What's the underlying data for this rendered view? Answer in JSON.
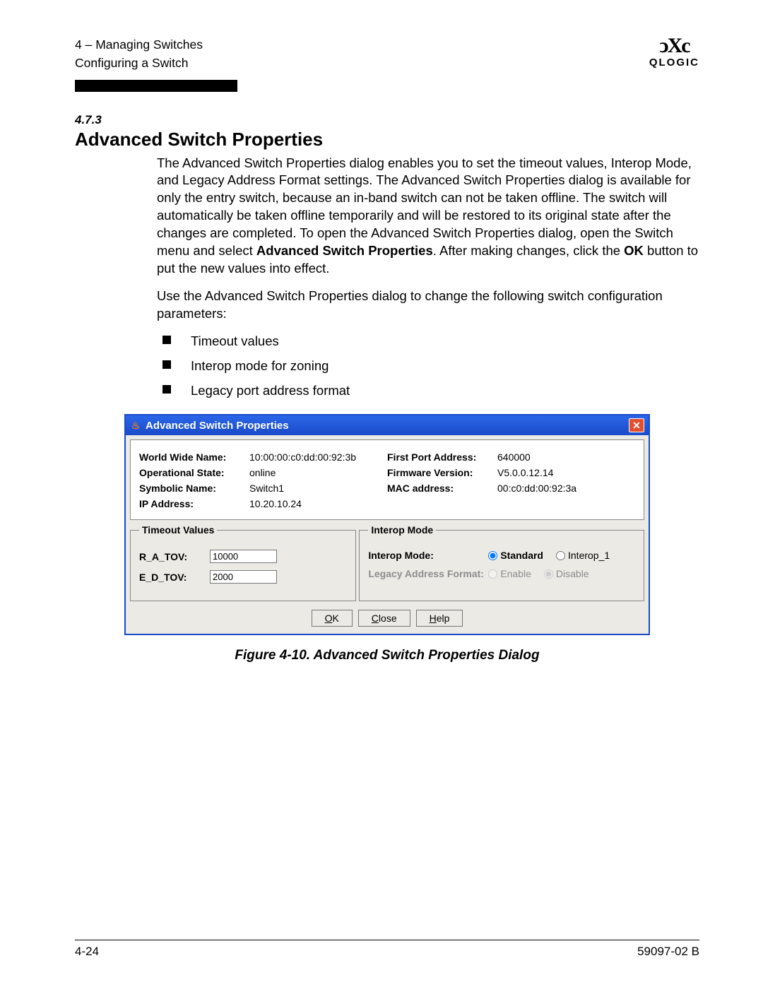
{
  "header": {
    "chapter_line": "4 – Managing Switches",
    "section_line": "Configuring a Switch",
    "logo_glyph": "ↄXc",
    "logo_text": "QLOGIC"
  },
  "section": {
    "number": "4.7.3",
    "title": "Advanced Switch Properties",
    "para1_a": "The Advanced Switch Properties dialog enables you to set the timeout values, Interop Mode, and Legacy Address Format settings. The Advanced Switch Properties dialog is available for only the entry switch, because an in-band switch can not be taken offline. The switch will automatically be taken offline temporarily and will be restored to its original state after the changes are completed. To open the Advanced Switch Properties dialog, open the Switch menu and select ",
    "para1_bold": "Advanced Switch Properties",
    "para1_b": ". After making changes, click the ",
    "para1_ok": "OK",
    "para1_c": " button to put the new values into effect.",
    "para2": "Use the Advanced Switch Properties dialog to change the following switch configuration parameters:",
    "bullets": [
      "Timeout values",
      "Interop mode for zoning",
      "Legacy port address format"
    ]
  },
  "dialog": {
    "title": "Advanced Switch Properties",
    "info": {
      "wwn_label": "World Wide Name:",
      "wwn_value": "10:00:00:c0:dd:00:92:3b",
      "first_port_label": "First Port Address:",
      "first_port_value": "640000",
      "op_state_label": "Operational State:",
      "op_state_value": "online",
      "fw_label": "Firmware Version:",
      "fw_value": "V5.0.0.12.14",
      "sym_label": "Symbolic Name:",
      "sym_value": "Switch1",
      "mac_label": "MAC address:",
      "mac_value": "00:c0:dd:00:92:3a",
      "ip_label": "IP Address:",
      "ip_value": "10.20.10.24"
    },
    "timeout": {
      "legend": "Timeout Values",
      "ra_label": "R_A_TOV:",
      "ra_value": "10000",
      "ed_label": "E_D_TOV:",
      "ed_value": "2000"
    },
    "interop": {
      "legend": "Interop Mode",
      "mode_label": "Interop Mode:",
      "standard": "Standard",
      "interop1": "Interop_1",
      "legacy_label": "Legacy Address Format:",
      "enable": "Enable",
      "disable": "Disable"
    },
    "buttons": {
      "ok": "K",
      "ok_u": "O",
      "close": "lose",
      "close_u": "C",
      "help": "elp",
      "help_u": "H"
    }
  },
  "figure_caption": "Figure 4-10.  Advanced Switch Properties Dialog",
  "footer": {
    "left": "4-24",
    "right": "59097-02 B"
  }
}
